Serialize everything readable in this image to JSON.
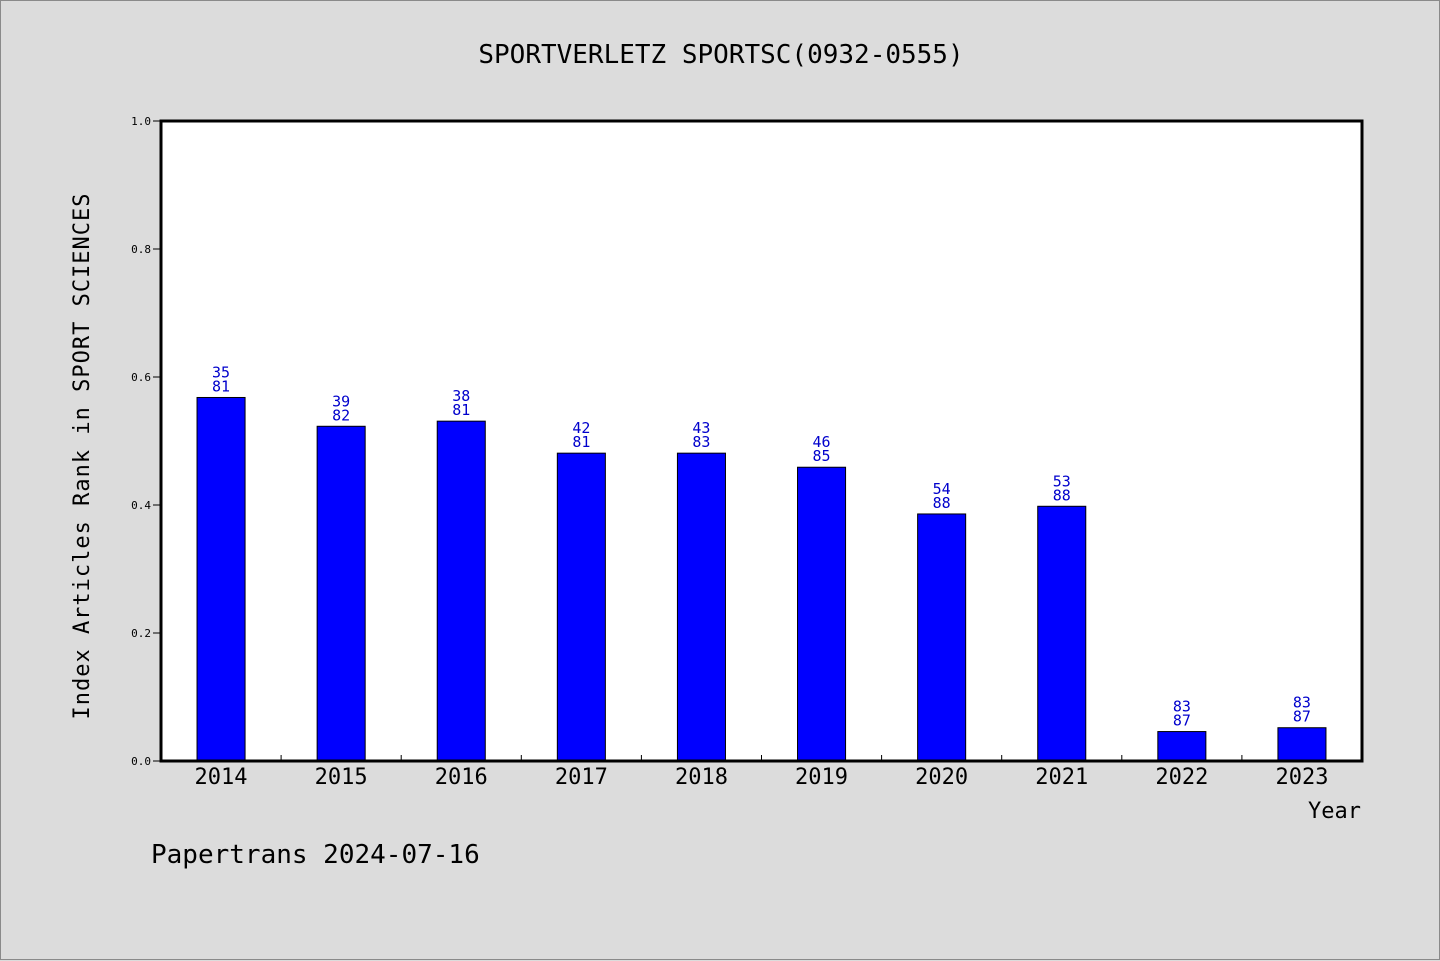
{
  "chart_data": {
    "type": "bar",
    "title": "SPORTVERLETZ SPORTSC(0932-0555)",
    "ylabel": "Index Articles Rank in SPORT SCIENCES",
    "xlabel": "Year",
    "ylim": [
      0,
      1.0
    ],
    "yticks": [
      0.0,
      0.2,
      0.4,
      0.6,
      0.8,
      1.0
    ],
    "ytick_labels": [
      "0.0",
      "0.2",
      "0.4",
      "0.6",
      "0.8",
      "1.0"
    ],
    "categories": [
      "2014",
      "2015",
      "2016",
      "2017",
      "2018",
      "2019",
      "2020",
      "2021",
      "2022",
      "2023"
    ],
    "values": [
      0.568,
      0.523,
      0.531,
      0.481,
      0.481,
      0.459,
      0.386,
      0.398,
      0.046,
      0.052
    ],
    "rank_labels": [
      "35",
      "39",
      "38",
      "42",
      "43",
      "46",
      "54",
      "53",
      "83",
      "83"
    ],
    "total_labels": [
      "81",
      "82",
      "81",
      "81",
      "83",
      "85",
      "88",
      "88",
      "87",
      "87"
    ],
    "bar_color": "#0000ff",
    "label_color": "#0000cc",
    "grid": false,
    "legend": "none"
  },
  "footer": "Papertrans 2024-07-16"
}
